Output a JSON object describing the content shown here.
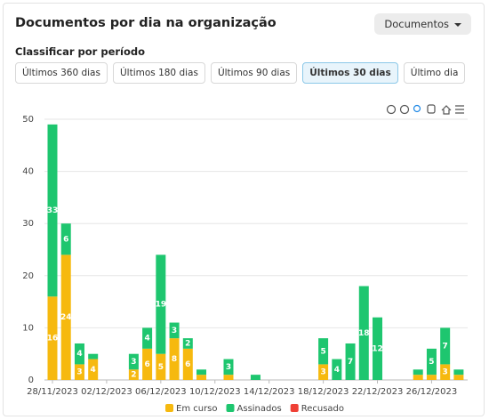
{
  "header": {
    "title": "Documentos por dia na organização",
    "dropdown": "Documentos"
  },
  "filters": {
    "label": "Classificar por período",
    "options": [
      "Últimos 360 dias",
      "Últimos 180 dias",
      "Últimos 90 dias",
      "Últimos 30 dias",
      "Último dia"
    ],
    "active": 3
  },
  "chart_data": {
    "type": "stacked-bar",
    "categories": [
      "28/11/2023",
      null,
      null,
      null,
      "02/12/2023",
      null,
      null,
      null,
      "06/12/2023",
      null,
      null,
      null,
      "10/12/2023",
      null,
      null,
      null,
      "14/12/2023",
      null,
      null,
      null,
      "18/12/2023",
      null,
      null,
      null,
      "22/12/2023",
      null,
      null,
      null,
      "26/12/2023",
      null,
      null
    ],
    "series": [
      {
        "name": "Em curso",
        "color": "#f6b90f",
        "values": [
          16,
          24,
          3,
          4,
          0,
          0,
          2,
          6,
          5,
          8,
          6,
          1,
          0,
          1,
          0,
          0,
          0,
          0,
          0,
          0,
          3,
          0,
          0,
          0,
          0,
          0,
          0,
          1,
          1,
          3,
          1
        ]
      },
      {
        "name": "Assinados",
        "color": "#1ec66f",
        "values": [
          33,
          6,
          4,
          1,
          0,
          0,
          3,
          4,
          19,
          3,
          2,
          1,
          0,
          3,
          0,
          1,
          0,
          0,
          0,
          0,
          5,
          4,
          7,
          18,
          12,
          0,
          0,
          1,
          5,
          7,
          1
        ]
      },
      {
        "name": "Recusado",
        "color": "#ef4036",
        "values": [
          0,
          0,
          0,
          0,
          0,
          0,
          0,
          0,
          0,
          0,
          0,
          0,
          0,
          0,
          0,
          0,
          0,
          0,
          0,
          0,
          0,
          0,
          0,
          0,
          0,
          0,
          0,
          0,
          0,
          0,
          0
        ]
      }
    ],
    "ylim": [
      0,
      50
    ],
    "yticks": [
      0,
      10,
      20,
      30,
      40,
      50
    ],
    "grid": true,
    "legend": "bottom"
  }
}
